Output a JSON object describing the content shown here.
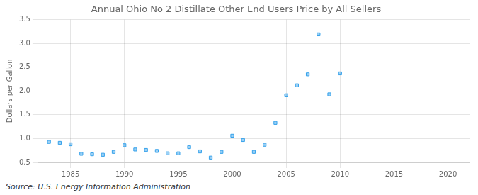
{
  "chart_data": {
    "type": "scatter",
    "title": "Annual Ohio No 2 Distillate Other End Users Price by All Sellers",
    "ylabel": "Dollars per Gallon",
    "annotation": "Source: U.S. Energy Information Administration",
    "x": [
      1983,
      1984,
      1985,
      1986,
      1987,
      1988,
      1989,
      1990,
      1991,
      1992,
      1993,
      1994,
      1995,
      1996,
      1997,
      1998,
      1999,
      2000,
      2001,
      2002,
      2003,
      2004,
      2005,
      2006,
      2007,
      2008,
      2009,
      2010
    ],
    "values": [
      0.93,
      0.91,
      0.88,
      0.68,
      0.67,
      0.66,
      0.72,
      0.86,
      0.77,
      0.76,
      0.74,
      0.69,
      0.69,
      0.82,
      0.73,
      0.6,
      0.72,
      1.06,
      0.97,
      0.72,
      0.87,
      1.33,
      1.91,
      2.12,
      2.35,
      3.19,
      1.93,
      2.37
    ],
    "marker": "square",
    "xlim": [
      1982,
      2022
    ],
    "ylim": [
      0.5,
      3.5
    ],
    "xticks": [
      1985,
      1990,
      1995,
      2000,
      2005,
      2010,
      2015,
      2020
    ],
    "yticks": [
      0.5,
      {
        "value": 1.0,
        "label": "1.0"
      },
      1.5,
      {
        "value": 2.0,
        "label": "2.0"
      },
      2.5,
      {
        "value": 3.0,
        "label": "3.0"
      },
      3.5
    ],
    "grid": true
  }
}
